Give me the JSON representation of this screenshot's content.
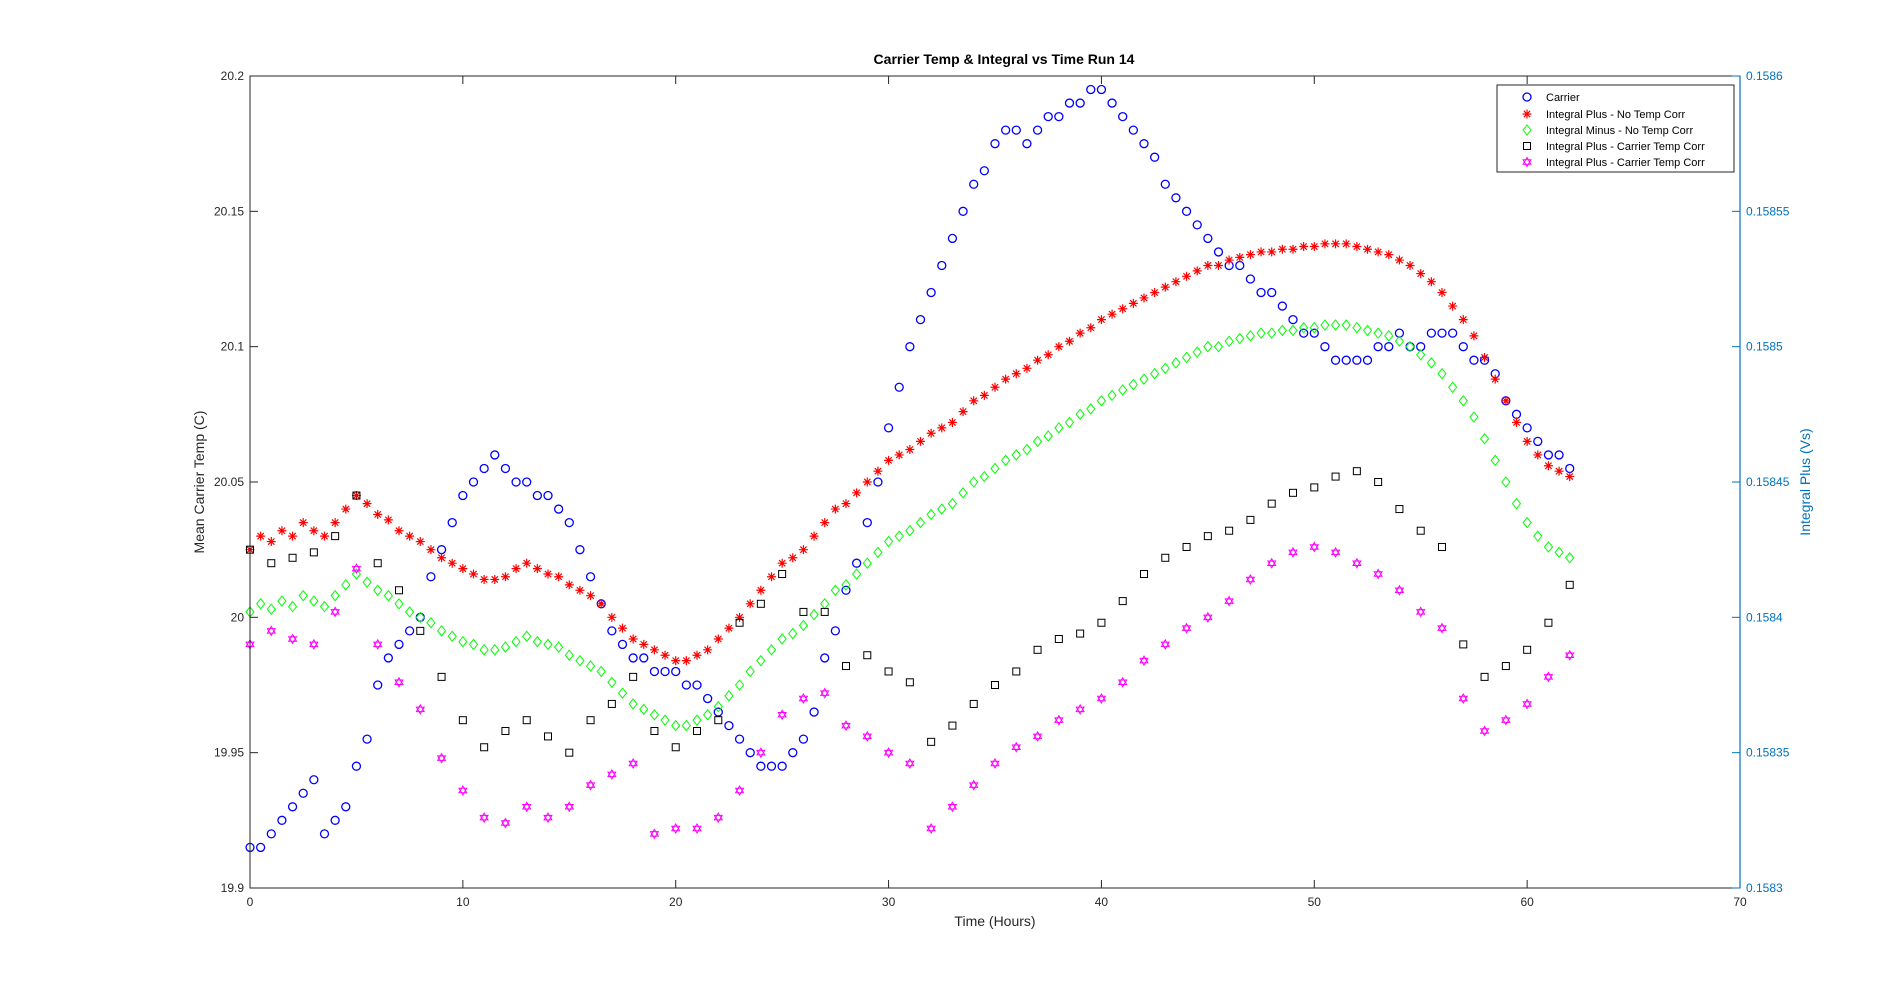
{
  "chart_data": {
    "type": "scatter",
    "title": "Carrier Temp & Integral vs Time Run 14",
    "xlabel": "Time (Hours)",
    "ylabel": "Mean Carrier Temp (C)",
    "y2label": "Integral Plus (Vs)",
    "xlim": [
      0,
      70
    ],
    "ylim": [
      19.9,
      20.2
    ],
    "y2lim": [
      0.1583,
      0.1586
    ],
    "x_ticks": [
      "0",
      "10",
      "20",
      "30",
      "40",
      "50",
      "60",
      "70"
    ],
    "y_ticks": [
      "19.9",
      "19.95",
      "20",
      "20.05",
      "20.1",
      "20.15",
      "20.2"
    ],
    "y2_ticks": [
      "0.1583",
      "0.15835",
      "0.1584",
      "0.15845",
      "0.1585",
      "0.15855",
      "0.1586"
    ],
    "grid": false,
    "legend_position": "top-right",
    "series": [
      {
        "name": "Carrier",
        "axis": "left",
        "marker": "circle",
        "color": "#0000ff",
        "x": [
          0,
          0.5,
          1,
          1.5,
          2,
          2.5,
          3,
          3.5,
          4,
          4.5,
          5,
          5.5,
          6,
          6.5,
          7,
          7.5,
          8,
          8.5,
          9,
          9.5,
          10,
          10.5,
          11,
          11.5,
          12,
          12.5,
          13,
          13.5,
          14,
          14.5,
          15,
          15.5,
          16,
          16.5,
          17,
          17.5,
          18,
          18.5,
          19,
          19.5,
          20,
          20.5,
          21,
          21.5,
          22,
          22.5,
          23,
          23.5,
          24,
          24.5,
          25,
          25.5,
          26,
          26.5,
          27,
          27.5,
          28,
          28.5,
          29,
          29.5,
          30,
          30.5,
          31,
          31.5,
          32,
          32.5,
          33,
          33.5,
          34,
          34.5,
          35,
          35.5,
          36,
          36.5,
          37,
          37.5,
          38,
          38.5,
          39,
          39.5,
          40,
          40.5,
          41,
          41.5,
          42,
          42.5,
          43,
          43.5,
          44,
          44.5,
          45,
          45.5,
          46,
          46.5,
          47,
          47.5,
          48,
          48.5,
          49,
          49.5,
          50,
          50.5,
          51,
          51.5,
          52,
          52.5,
          53,
          53.5,
          54,
          54.5,
          55,
          55.5,
          56,
          56.5,
          57,
          57.5,
          58,
          58.5,
          59,
          59.5,
          60,
          60.5,
          61,
          61.5,
          62
        ],
        "y": [
          19.915,
          19.915,
          19.92,
          19.925,
          19.93,
          19.935,
          19.94,
          19.92,
          19.925,
          19.93,
          19.945,
          19.955,
          19.975,
          19.985,
          19.99,
          19.995,
          20.0,
          20.015,
          20.025,
          20.035,
          20.045,
          20.05,
          20.055,
          20.06,
          20.055,
          20.05,
          20.05,
          20.045,
          20.045,
          20.04,
          20.035,
          20.025,
          20.015,
          20.005,
          19.995,
          19.99,
          19.985,
          19.985,
          19.98,
          19.98,
          19.98,
          19.975,
          19.975,
          19.97,
          19.965,
          19.96,
          19.955,
          19.95,
          19.945,
          19.945,
          19.945,
          19.95,
          19.955,
          19.965,
          19.985,
          19.995,
          20.01,
          20.02,
          20.035,
          20.05,
          20.07,
          20.085,
          20.1,
          20.11,
          20.12,
          20.13,
          20.14,
          20.15,
          20.16,
          20.165,
          20.175,
          20.18,
          20.18,
          20.175,
          20.18,
          20.185,
          20.185,
          20.19,
          20.19,
          20.195,
          20.195,
          20.19,
          20.185,
          20.18,
          20.175,
          20.17,
          20.16,
          20.155,
          20.15,
          20.145,
          20.14,
          20.135,
          20.13,
          20.13,
          20.125,
          20.12,
          20.12,
          20.115,
          20.11,
          20.105,
          20.105,
          20.1,
          20.095,
          20.095,
          20.095,
          20.095,
          20.1,
          20.1,
          20.105,
          20.1,
          20.1,
          20.105,
          20.105,
          20.105,
          20.1,
          20.095,
          20.095,
          20.09,
          20.08,
          20.075,
          20.07,
          20.065,
          20.06,
          20.06,
          20.055
        ]
      },
      {
        "name": "Integral Plus -  No Temp Corr",
        "axis": "right",
        "marker": "asterisk",
        "color": "#ff0000",
        "x": [
          0,
          0.5,
          1,
          1.5,
          2,
          2.5,
          3,
          3.5,
          4,
          4.5,
          5,
          5.5,
          6,
          6.5,
          7,
          7.5,
          8,
          8.5,
          9,
          9.5,
          10,
          10.5,
          11,
          11.5,
          12,
          12.5,
          13,
          13.5,
          14,
          14.5,
          15,
          15.5,
          16,
          16.5,
          17,
          17.5,
          18,
          18.5,
          19,
          19.5,
          20,
          20.5,
          21,
          21.5,
          22,
          22.5,
          23,
          23.5,
          24,
          24.5,
          25,
          25.5,
          26,
          26.5,
          27,
          27.5,
          28,
          28.5,
          29,
          29.5,
          30,
          30.5,
          31,
          31.5,
          32,
          32.5,
          33,
          33.5,
          34,
          34.5,
          35,
          35.5,
          36,
          36.5,
          37,
          37.5,
          38,
          38.5,
          39,
          39.5,
          40,
          40.5,
          41,
          41.5,
          42,
          42.5,
          43,
          43.5,
          44,
          44.5,
          45,
          45.5,
          46,
          46.5,
          47,
          47.5,
          48,
          48.5,
          49,
          49.5,
          50,
          50.5,
          51,
          51.5,
          52,
          52.5,
          53,
          53.5,
          54,
          54.5,
          55,
          55.5,
          56,
          56.5,
          57,
          57.5,
          58,
          58.5,
          59,
          59.5,
          60,
          60.5,
          61,
          61.5,
          62
        ],
        "y": [
          0.158425,
          0.15843,
          0.158428,
          0.158432,
          0.15843,
          0.158435,
          0.158432,
          0.15843,
          0.158435,
          0.15844,
          0.158445,
          0.158442,
          0.158438,
          0.158436,
          0.158432,
          0.15843,
          0.158428,
          0.158425,
          0.158422,
          0.15842,
          0.158418,
          0.158416,
          0.158414,
          0.158414,
          0.158415,
          0.158418,
          0.15842,
          0.158418,
          0.158416,
          0.158415,
          0.158412,
          0.15841,
          0.158408,
          0.158405,
          0.1584,
          0.158396,
          0.158392,
          0.15839,
          0.158388,
          0.158386,
          0.158384,
          0.158384,
          0.158386,
          0.158388,
          0.158392,
          0.158396,
          0.1584,
          0.158405,
          0.15841,
          0.158415,
          0.15842,
          0.158422,
          0.158425,
          0.15843,
          0.158435,
          0.15844,
          0.158442,
          0.158446,
          0.15845,
          0.158454,
          0.158458,
          0.15846,
          0.158462,
          0.158465,
          0.158468,
          0.15847,
          0.158472,
          0.158476,
          0.15848,
          0.158482,
          0.158485,
          0.158488,
          0.15849,
          0.158492,
          0.158495,
          0.158497,
          0.1585,
          0.158502,
          0.158505,
          0.158507,
          0.15851,
          0.158512,
          0.158514,
          0.158516,
          0.158518,
          0.15852,
          0.158522,
          0.158524,
          0.158526,
          0.158528,
          0.15853,
          0.15853,
          0.158532,
          0.158533,
          0.158534,
          0.158535,
          0.158535,
          0.158536,
          0.158536,
          0.158537,
          0.158537,
          0.158538,
          0.158538,
          0.158538,
          0.158537,
          0.158536,
          0.158535,
          0.158534,
          0.158532,
          0.15853,
          0.158527,
          0.158524,
          0.15852,
          0.158515,
          0.15851,
          0.158504,
          0.158496,
          0.158488,
          0.15848,
          0.158472,
          0.158465,
          0.15846,
          0.158456,
          0.158454,
          0.158452
        ]
      },
      {
        "name": "Integral Minus -  No Temp Corr",
        "axis": "right",
        "marker": "diamond",
        "color": "#00ff00",
        "x": [
          0,
          0.5,
          1,
          1.5,
          2,
          2.5,
          3,
          3.5,
          4,
          4.5,
          5,
          5.5,
          6,
          6.5,
          7,
          7.5,
          8,
          8.5,
          9,
          9.5,
          10,
          10.5,
          11,
          11.5,
          12,
          12.5,
          13,
          13.5,
          14,
          14.5,
          15,
          15.5,
          16,
          16.5,
          17,
          17.5,
          18,
          18.5,
          19,
          19.5,
          20,
          20.5,
          21,
          21.5,
          22,
          22.5,
          23,
          23.5,
          24,
          24.5,
          25,
          25.5,
          26,
          26.5,
          27,
          27.5,
          28,
          28.5,
          29,
          29.5,
          30,
          30.5,
          31,
          31.5,
          32,
          32.5,
          33,
          33.5,
          34,
          34.5,
          35,
          35.5,
          36,
          36.5,
          37,
          37.5,
          38,
          38.5,
          39,
          39.5,
          40,
          40.5,
          41,
          41.5,
          42,
          42.5,
          43,
          43.5,
          44,
          44.5,
          45,
          45.5,
          46,
          46.5,
          47,
          47.5,
          48,
          48.5,
          49,
          49.5,
          50,
          50.5,
          51,
          51.5,
          52,
          52.5,
          53,
          53.5,
          54,
          54.5,
          55,
          55.5,
          56,
          56.5,
          57,
          57.5,
          58,
          58.5,
          59,
          59.5,
          60,
          60.5,
          61,
          61.5,
          62
        ],
        "y": [
          0.158402,
          0.158405,
          0.158403,
          0.158406,
          0.158404,
          0.158408,
          0.158406,
          0.158404,
          0.158408,
          0.158412,
          0.158416,
          0.158413,
          0.15841,
          0.158408,
          0.158405,
          0.158402,
          0.1584,
          0.158398,
          0.158395,
          0.158393,
          0.158391,
          0.15839,
          0.158388,
          0.158388,
          0.158389,
          0.158391,
          0.158393,
          0.158391,
          0.15839,
          0.158389,
          0.158386,
          0.158384,
          0.158382,
          0.15838,
          0.158376,
          0.158372,
          0.158368,
          0.158366,
          0.158364,
          0.158362,
          0.15836,
          0.15836,
          0.158362,
          0.158364,
          0.158367,
          0.158371,
          0.158375,
          0.15838,
          0.158384,
          0.158388,
          0.158392,
          0.158394,
          0.158397,
          0.158401,
          0.158405,
          0.15841,
          0.158412,
          0.158416,
          0.15842,
          0.158424,
          0.158428,
          0.15843,
          0.158432,
          0.158435,
          0.158438,
          0.15844,
          0.158442,
          0.158446,
          0.15845,
          0.158452,
          0.158455,
          0.158458,
          0.15846,
          0.158462,
          0.158465,
          0.158467,
          0.15847,
          0.158472,
          0.158475,
          0.158477,
          0.15848,
          0.158482,
          0.158484,
          0.158486,
          0.158488,
          0.15849,
          0.158492,
          0.158494,
          0.158496,
          0.158498,
          0.1585,
          0.1585,
          0.158502,
          0.158503,
          0.158504,
          0.158505,
          0.158505,
          0.158506,
          0.158506,
          0.158507,
          0.158507,
          0.158508,
          0.158508,
          0.158508,
          0.158507,
          0.158506,
          0.158505,
          0.158504,
          0.158502,
          0.1585,
          0.158497,
          0.158494,
          0.15849,
          0.158485,
          0.15848,
          0.158474,
          0.158466,
          0.158458,
          0.15845,
          0.158442,
          0.158435,
          0.15843,
          0.158426,
          0.158424,
          0.158422
        ]
      },
      {
        "name": "Integral Plus -  Carrier Temp Corr",
        "axis": "right",
        "marker": "square",
        "color": "#000000",
        "x": [
          0,
          1,
          2,
          3,
          4,
          5,
          6,
          7,
          8,
          9,
          10,
          11,
          12,
          13,
          14,
          15,
          16,
          17,
          18,
          19,
          20,
          21,
          22,
          23,
          24,
          25,
          26,
          27,
          28,
          29,
          30,
          31,
          32,
          33,
          34,
          35,
          36,
          37,
          38,
          39,
          40,
          41,
          42,
          43,
          44,
          45,
          46,
          47,
          48,
          49,
          50,
          51,
          52,
          53,
          54,
          55,
          56,
          57,
          58,
          59,
          60,
          61,
          62
        ],
        "y": [
          0.158425,
          0.15842,
          0.158422,
          0.158424,
          0.15843,
          0.158445,
          0.15842,
          0.15841,
          0.158395,
          0.158378,
          0.158362,
          0.158352,
          0.158358,
          0.158362,
          0.158356,
          0.15835,
          0.158362,
          0.158368,
          0.158378,
          0.158358,
          0.158352,
          0.158358,
          0.158362,
          0.158398,
          0.158405,
          0.158416,
          0.158402,
          0.158402,
          0.158382,
          0.158386,
          0.15838,
          0.158376,
          0.158354,
          0.15836,
          0.158368,
          0.158375,
          0.15838,
          0.158388,
          0.158392,
          0.158394,
          0.158398,
          0.158406,
          0.158416,
          0.158422,
          0.158426,
          0.15843,
          0.158432,
          0.158436,
          0.158442,
          0.158446,
          0.158448,
          0.158452,
          0.158454,
          0.15845,
          0.15844,
          0.158432,
          0.158426,
          0.15839,
          0.158378,
          0.158382,
          0.158388,
          0.158398,
          0.158412
        ]
      },
      {
        "name": "Integral Plus -  Carrier Temp Corr",
        "axis": "right",
        "marker": "hexagram",
        "color": "#ff00ff",
        "x": [
          0,
          1,
          2,
          3,
          4,
          5,
          6,
          7,
          8,
          9,
          10,
          11,
          12,
          13,
          14,
          15,
          16,
          17,
          18,
          19,
          20,
          21,
          22,
          23,
          24,
          25,
          26,
          27,
          28,
          29,
          30,
          31,
          32,
          33,
          34,
          35,
          36,
          37,
          38,
          39,
          40,
          41,
          42,
          43,
          44,
          45,
          46,
          47,
          48,
          49,
          50,
          51,
          52,
          53,
          54,
          55,
          56,
          57,
          58,
          59,
          60,
          61,
          62
        ],
        "y": [
          0.15839,
          0.158395,
          0.158392,
          0.15839,
          0.158402,
          0.158418,
          0.15839,
          0.158376,
          0.158366,
          0.158348,
          0.158336,
          0.158326,
          0.158324,
          0.15833,
          0.158326,
          0.15833,
          0.158338,
          0.158342,
          0.158346,
          0.15832,
          0.158322,
          0.158322,
          0.158326,
          0.158336,
          0.15835,
          0.158364,
          0.15837,
          0.158372,
          0.15836,
          0.158356,
          0.15835,
          0.158346,
          0.158322,
          0.15833,
          0.158338,
          0.158346,
          0.158352,
          0.158356,
          0.158362,
          0.158366,
          0.15837,
          0.158376,
          0.158384,
          0.15839,
          0.158396,
          0.1584,
          0.158406,
          0.158414,
          0.15842,
          0.158424,
          0.158426,
          0.158424,
          0.15842,
          0.158416,
          0.15841,
          0.158402,
          0.158396,
          0.15837,
          0.158358,
          0.158362,
          0.158368,
          0.158378,
          0.158386
        ]
      }
    ]
  }
}
